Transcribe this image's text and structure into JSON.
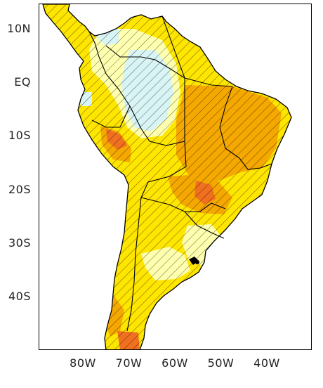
{
  "map": {
    "lat_ticks": [
      {
        "label": "10N",
        "lat": 10
      },
      {
        "label": "EQ",
        "lat": 0
      },
      {
        "label": "10S",
        "lat": -10
      },
      {
        "label": "20S",
        "lat": -20
      },
      {
        "label": "30S",
        "lat": -30
      },
      {
        "label": "40S",
        "lat": -40
      }
    ],
    "lon_ticks": [
      {
        "label": "80W",
        "lon": -80
      },
      {
        "label": "70W",
        "lon": -70
      },
      {
        "label": "60W",
        "lon": -60
      },
      {
        "label": "50W",
        "lon": -50
      },
      {
        "label": "40W",
        "lon": -40
      }
    ],
    "colors": {
      "light_yellow": "#ffffb0",
      "yellow": "#ffe600",
      "orange": "#f5a800",
      "dark_orange": "#f07020",
      "light_cyan": "#d8f4f4",
      "outline": "#000000",
      "hatch": "#000000"
    },
    "lon_range": [
      -89,
      -30
    ],
    "lat_range": [
      -50,
      13
    ]
  }
}
